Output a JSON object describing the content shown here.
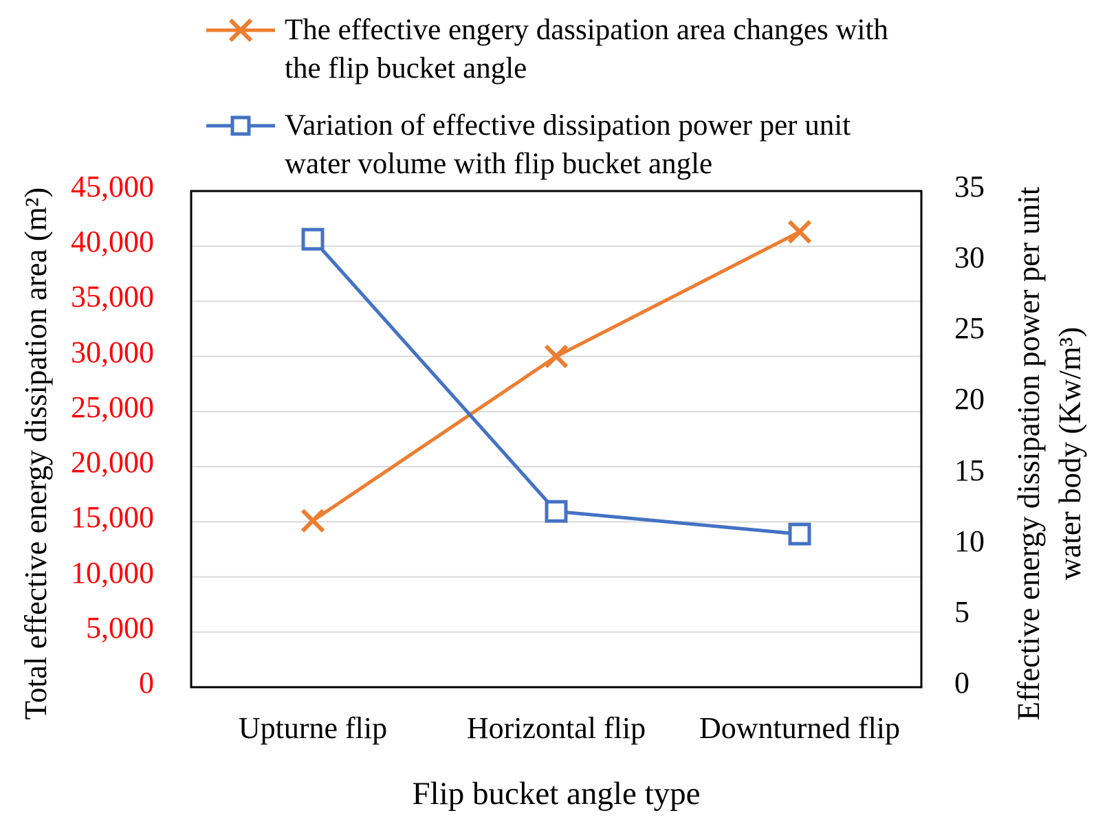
{
  "colors": {
    "series_area": "#ED7D31",
    "series_power": "#4472C4",
    "left_ticks": "#FF0000",
    "right_ticks": "#000000",
    "gridline": "#D9D9D9",
    "plot_border": "#000000",
    "marker_fill": "#FFFFFF",
    "background": "#FFFFFF"
  },
  "legend": {
    "entries": [
      {
        "marker": "x-on-line",
        "color": "#ED7D31",
        "line1": "The effective engery dassipation area changes with",
        "line2": "the flip bucket angle"
      },
      {
        "marker": "square-on-line",
        "color": "#4472C4",
        "line1": "Variation of effective dissipation power per unit",
        "line2": "water volume with flip bucket angle"
      }
    ]
  },
  "axes": {
    "left": {
      "title": "Total effective energy dissipation area (m²)",
      "ticks": [
        "0",
        "5,000",
        "10,000",
        "15,000",
        "20,000",
        "25,000",
        "30,000",
        "35,000",
        "40,000",
        "45,000"
      ]
    },
    "right": {
      "title_line1": "Effective energy dissipation power per unit",
      "title_line2": "water body (Kw/m³)",
      "ticks": [
        "0",
        "5",
        "10",
        "15",
        "20",
        "25",
        "30",
        "35"
      ]
    },
    "x": {
      "title": "Flip bucket angle type"
    }
  },
  "chart_data": {
    "type": "line",
    "categories": [
      "Upturne flip",
      "Horizontal flip",
      "Downturned flip"
    ],
    "series": [
      {
        "name": "The effective engery dassipation area changes with the flip bucket angle",
        "axis": "left",
        "color": "#ED7D31",
        "marker": "x",
        "values": [
          15100,
          30000,
          41300
        ]
      },
      {
        "name": "Variation of effective dissipation power per unit water volume with flip bucket angle",
        "axis": "right",
        "color": "#4472C4",
        "marker": "square",
        "values": [
          31.6,
          12.4,
          10.8
        ]
      }
    ],
    "title": "",
    "xlabel": "Flip bucket angle type",
    "ylabel_left": "Total effective energy dissipation area (m²)",
    "ylabel_right": "Effective energy dissipation power per unit water body (Kw/m³)",
    "left_ylim": [
      0,
      45000
    ],
    "left_step": 5000,
    "right_ylim": [
      0,
      35
    ],
    "right_step": 5,
    "grid": "horizontal-major",
    "legend_position": "top"
  }
}
